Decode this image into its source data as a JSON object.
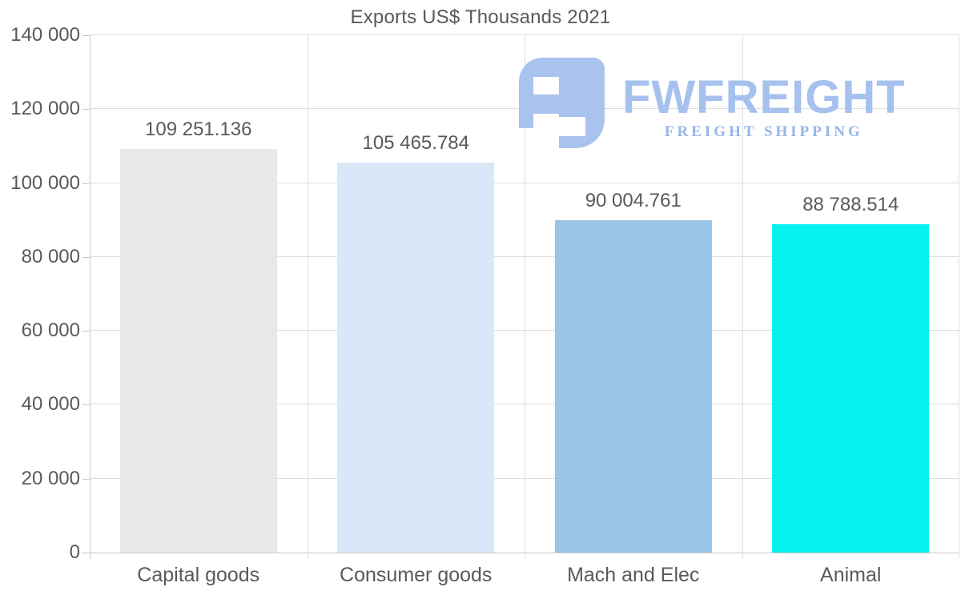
{
  "page": {
    "background": "#ffffff",
    "text_color": "#595959"
  },
  "chart_data": {
    "type": "bar",
    "title": "Exports US$ Thousands 2021",
    "categories": [
      "Capital goods",
      "Consumer goods",
      "Mach and Elec",
      "Animal"
    ],
    "values": [
      109251.136,
      105465.784,
      90004.761,
      88788.514
    ],
    "value_labels": [
      "109 251.136",
      "105 465.784",
      "90 004.761",
      "88 788.514"
    ],
    "bar_colors": [
      "#e8e8e8",
      "#d9e7f8",
      "#9ac4e6",
      "#06f2f2"
    ],
    "xlabel": "",
    "ylabel": "",
    "ylim": [
      0,
      140000
    ],
    "ytick_step": 20000,
    "ytick_labels": [
      "0",
      "20 000",
      "40 000",
      "60 000",
      "80 000",
      "100 000",
      "120 000",
      "140 000"
    ],
    "legend": null,
    "grid": {
      "horizontal": true,
      "vertical": true,
      "grid_color": "#dedede",
      "axis_color": "#c9c9c9"
    }
  },
  "watermark": {
    "brand": "FWFREIGHT",
    "tagline": "FREIGHT SHIPPING",
    "brand_color": "#a6c1ee",
    "tagline_color": "#97b5e9",
    "mark_color": "#a9c3ef"
  }
}
